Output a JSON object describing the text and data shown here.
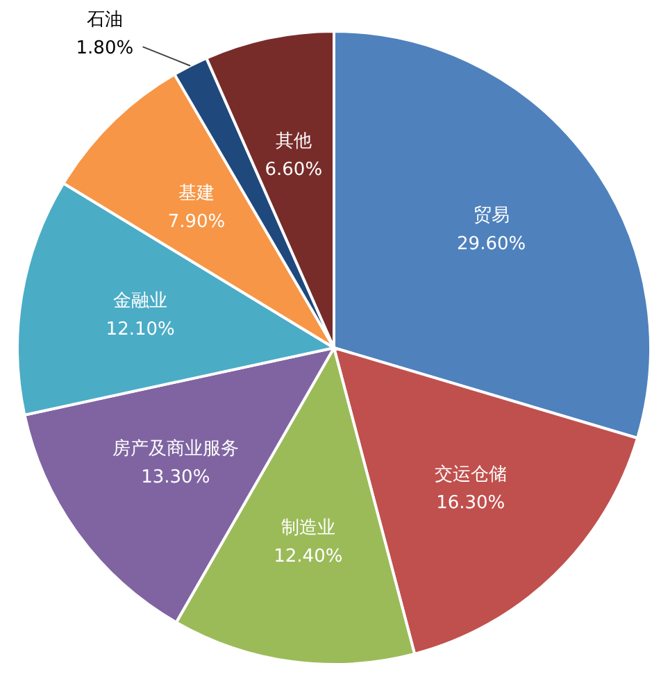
{
  "chart_data": {
    "type": "pie",
    "categories": [
      "贸易",
      "交运仓储",
      "制造业",
      "房产及商业服务",
      "金融业",
      "基建",
      "石油",
      "其他"
    ],
    "values": [
      29.6,
      16.3,
      12.4,
      13.3,
      12.1,
      7.9,
      1.8,
      6.6
    ],
    "colors": [
      "#4f81bd",
      "#c0504d",
      "#9bbb59",
      "#8064a2",
      "#4bacc6",
      "#f79646",
      "#1f497d",
      "#772c2a"
    ],
    "value_labels": [
      "29.60%",
      "16.30%",
      "12.40%",
      "13.30%",
      "12.10%",
      "7.90%",
      "1.80%",
      "6.60%"
    ]
  }
}
